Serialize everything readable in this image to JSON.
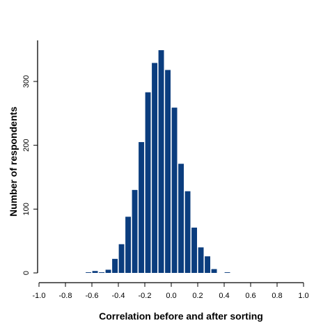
{
  "chart_data": {
    "type": "bar",
    "title": "",
    "xlabel": "Correlation before and after sorting",
    "ylabel": "Number of respondents",
    "xlim": [
      -1.0,
      1.0
    ],
    "ylim": [
      0,
      375
    ],
    "x_ticks": [
      -1.0,
      -0.8,
      -0.6,
      -0.4,
      -0.2,
      0.0,
      0.2,
      0.4,
      0.6,
      0.8,
      1.0
    ],
    "x_tick_labels": [
      "-1.0",
      "-0.8",
      "-0.6",
      "-0.4",
      "-0.2",
      "0.0",
      "0.2",
      "0.4",
      "0.6",
      "0.8",
      "1.0"
    ],
    "y_ticks": [
      0,
      100,
      200,
      300
    ],
    "y_tick_labels": [
      "0",
      "100",
      "200",
      "300"
    ],
    "bin_width": 0.05,
    "bin_starts": [
      -0.65,
      -0.6,
      -0.55,
      -0.5,
      -0.45,
      -0.4,
      -0.35,
      -0.3,
      -0.25,
      -0.2,
      -0.15,
      -0.1,
      -0.05,
      0.0,
      0.05,
      0.1,
      0.15,
      0.2,
      0.25,
      0.3,
      0.35,
      0.4
    ],
    "values": [
      1,
      3,
      1,
      5,
      22,
      45,
      88,
      130,
      205,
      283,
      329,
      349,
      318,
      259,
      171,
      128,
      71,
      40,
      26,
      6,
      0,
      1
    ],
    "grid": false,
    "legend": "none",
    "bar_color": "#0b3d7e"
  }
}
